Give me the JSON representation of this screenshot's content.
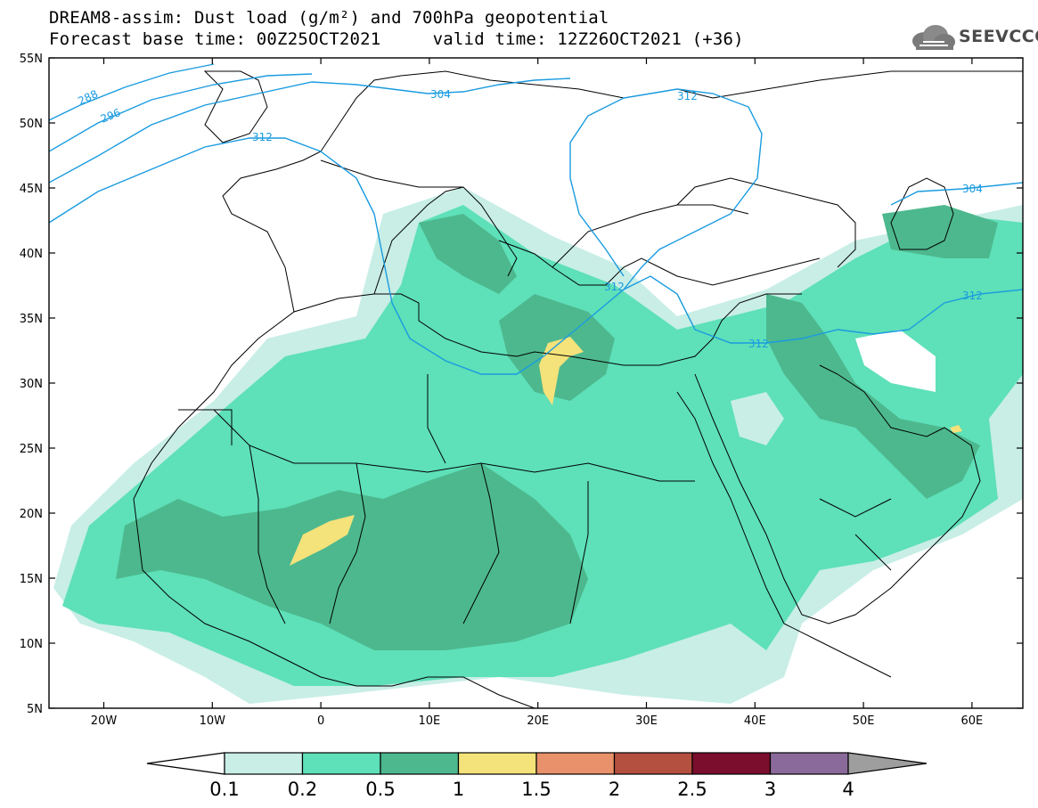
{
  "title": {
    "line1": "DREAM8-assim: Dust load (g/m²) and 700hPa geopotential",
    "line2": "Forecast base time: 00Z25OCT2021     valid time: 12Z26OCT2021 (+36)"
  },
  "logo": {
    "text": "SEEVCCC",
    "icon": "cloud-icon"
  },
  "map": {
    "lat_labels": [
      "55N",
      "50N",
      "45N",
      "40N",
      "35N",
      "30N",
      "25N",
      "20N",
      "15N",
      "10N",
      "5N"
    ],
    "lon_labels": [
      "20W",
      "10W",
      "0",
      "10E",
      "20E",
      "30E",
      "40E",
      "50E",
      "60E"
    ],
    "contour_labels": [
      "288",
      "296",
      "304",
      "312",
      "312",
      "312",
      "312",
      "304",
      "312"
    ]
  },
  "colorbar": {
    "labels": [
      "0.1",
      "0.2",
      "0.5",
      "1",
      "1.5",
      "2",
      "2.5",
      "3",
      "4"
    ],
    "colors": [
      "#c8eee6",
      "#5ee0b8",
      "#4db88e",
      "#f4e27a",
      "#e8916a",
      "#b3503f",
      "#7a0e2c",
      "#8a6a9a"
    ],
    "under_color": "#ffffff",
    "over_color": "#9e9e9e"
  },
  "palette": {
    "land_outline": "#000000",
    "contour_line": "#1a9be0"
  }
}
